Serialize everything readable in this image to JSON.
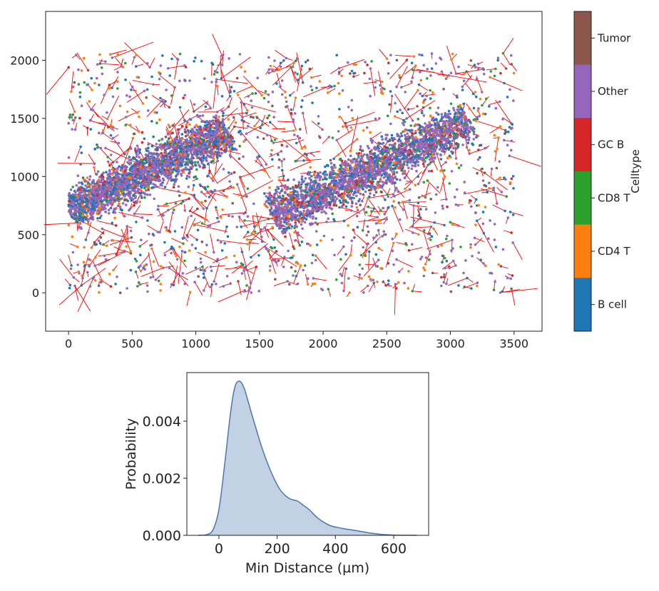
{
  "chart_data": [
    {
      "type": "scatter",
      "title": "",
      "xlabel": "",
      "ylabel": "",
      "xlim": [
        -180,
        3720
      ],
      "ylim": [
        -330,
        2420
      ],
      "x_ticks": [
        "0",
        "500",
        "1000",
        "1500",
        "2000",
        "2500",
        "3000",
        "3500"
      ],
      "y_ticks": [
        "0",
        "500",
        "1000",
        "1500",
        "2000"
      ],
      "grid": false,
      "x_extent": [
        0,
        3500
      ],
      "y_extent": [
        0,
        2060
      ],
      "high_density_regions": [
        {
          "from": [
            0,
            700
          ],
          "to": [
            1250,
            1400
          ],
          "half_width": 240
        },
        {
          "from": [
            1600,
            650
          ],
          "to": [
            3150,
            1480
          ],
          "half_width": 260
        }
      ],
      "nearest_neighbor_lines": {
        "color": "#ff0000",
        "description_visible": false
      },
      "colorbar": {
        "label": "Celltype",
        "placement": "right",
        "categories": [
          {
            "name": "Tumor",
            "color": "#8c564b"
          },
          {
            "name": "Other",
            "color": "#9467bd"
          },
          {
            "name": "GC B",
            "color": "#d62728"
          },
          {
            "name": "CD8 T",
            "color": "#2ca02c"
          },
          {
            "name": "CD4 T",
            "color": "#ff7f0e"
          },
          {
            "name": "B cell",
            "color": "#1f77b4"
          }
        ]
      }
    },
    {
      "type": "area",
      "title": "",
      "xlabel": "Min Distance (µm)",
      "ylabel": "Probability",
      "xlim": [
        -110,
        720
      ],
      "ylim": [
        0,
        0.0057
      ],
      "x_ticks": [
        "0",
        "200",
        "400",
        "600"
      ],
      "y_ticks": [
        "0.000",
        "0.002",
        "0.004"
      ],
      "fill_color": "#b7c9de",
      "line_color": "#4c78a8",
      "x": [
        -70,
        -40,
        -20,
        0,
        20,
        40,
        55,
        70,
        85,
        100,
        120,
        150,
        180,
        210,
        240,
        270,
        290,
        310,
        340,
        380,
        420,
        450,
        480,
        520,
        560,
        600,
        640,
        680
      ],
      "y": [
        0,
        3e-05,
        0.0002,
        0.0009,
        0.0025,
        0.0043,
        0.0052,
        0.0054,
        0.0052,
        0.0047,
        0.004,
        0.003,
        0.0022,
        0.0016,
        0.0013,
        0.0012,
        0.00105,
        0.0009,
        0.0006,
        0.00035,
        0.00025,
        0.0002,
        0.00015,
        8e-05,
        3e-05,
        1e-05,
        3e-06,
        0
      ]
    }
  ]
}
